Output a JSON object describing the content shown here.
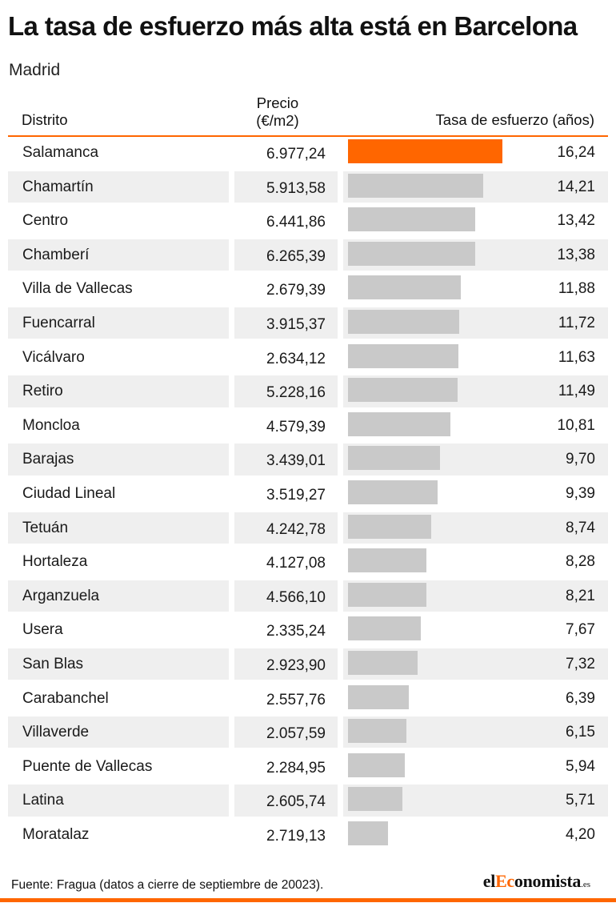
{
  "title": "La tasa de esfuerzo más alta está en Barcelona",
  "subtitle": "Madrid",
  "headers": {
    "distrito": "Distrito",
    "precio_line1": "Precio",
    "precio_line2": "(€/m2)",
    "tasa": "Tasa de esfuerzo (años)"
  },
  "colors": {
    "accent": "#ff6600",
    "bar": "#c9c9c9",
    "row_shade": "#efefef"
  },
  "chart_data": {
    "type": "bar",
    "orientation": "horizontal",
    "title": "La tasa de esfuerzo más alta está en Barcelona",
    "subtitle": "Madrid",
    "highlight_index": 0,
    "xlim": [
      0,
      16.24
    ],
    "rows": [
      {
        "distrito": "Salamanca",
        "precio": "6.977,24",
        "tasa_label": "16,24",
        "tasa": 16.24
      },
      {
        "distrito": "Chamartín",
        "precio": "5.913,58",
        "tasa_label": "14,21",
        "tasa": 14.21
      },
      {
        "distrito": "Centro",
        "precio": "6.441,86",
        "tasa_label": "13,42",
        "tasa": 13.42
      },
      {
        "distrito": "Chamberí",
        "precio": "6.265,39",
        "tasa_label": "13,38",
        "tasa": 13.38
      },
      {
        "distrito": "Villa de Vallecas",
        "precio": "2.679,39",
        "tasa_label": "11,88",
        "tasa": 11.88
      },
      {
        "distrito": "Fuencarral",
        "precio": "3.915,37",
        "tasa_label": "11,72",
        "tasa": 11.72
      },
      {
        "distrito": "Vicálvaro",
        "precio": "2.634,12",
        "tasa_label": "11,63",
        "tasa": 11.63
      },
      {
        "distrito": "Retiro",
        "precio": "5.228,16",
        "tasa_label": "11,49",
        "tasa": 11.49
      },
      {
        "distrito": "Moncloa",
        "precio": "4.579,39",
        "tasa_label": "10,81",
        "tasa": 10.81
      },
      {
        "distrito": "Barajas",
        "precio": "3.439,01",
        "tasa_label": "9,70",
        "tasa": 9.7
      },
      {
        "distrito": "Ciudad Lineal",
        "precio": "3.519,27",
        "tasa_label": "9,39",
        "tasa": 9.39
      },
      {
        "distrito": "Tetuán",
        "precio": "4.242,78",
        "tasa_label": "8,74",
        "tasa": 8.74
      },
      {
        "distrito": "Hortaleza",
        "precio": "4.127,08",
        "tasa_label": "8,28",
        "tasa": 8.28
      },
      {
        "distrito": "Arganzuela",
        "precio": "4.566,10",
        "tasa_label": "8,21",
        "tasa": 8.21
      },
      {
        "distrito": "Usera",
        "precio": "2.335,24",
        "tasa_label": "7,67",
        "tasa": 7.67
      },
      {
        "distrito": "San Blas",
        "precio": "2.923,90",
        "tasa_label": "7,32",
        "tasa": 7.32
      },
      {
        "distrito": "Carabanchel",
        "precio": "2.557,76",
        "tasa_label": "6,39",
        "tasa": 6.39
      },
      {
        "distrito": "Villaverde",
        "precio": "2.057,59",
        "tasa_label": "6,15",
        "tasa": 6.15
      },
      {
        "distrito": "Puente de Vallecas",
        "precio": "2.284,95",
        "tasa_label": "5,94",
        "tasa": 5.94
      },
      {
        "distrito": "Latina",
        "precio": "2.605,74",
        "tasa_label": "5,71",
        "tasa": 5.71
      },
      {
        "distrito": "Moratalaz",
        "precio": "2.719,13",
        "tasa_label": "4,20",
        "tasa": 4.2
      }
    ]
  },
  "footer": {
    "source": "Fuente: Fragua (datos a cierre de septiembre de 20023).",
    "brand_el": "el",
    "brand_accent": "Ec",
    "brand_rest": "onomista",
    "brand_tld": ".es"
  }
}
